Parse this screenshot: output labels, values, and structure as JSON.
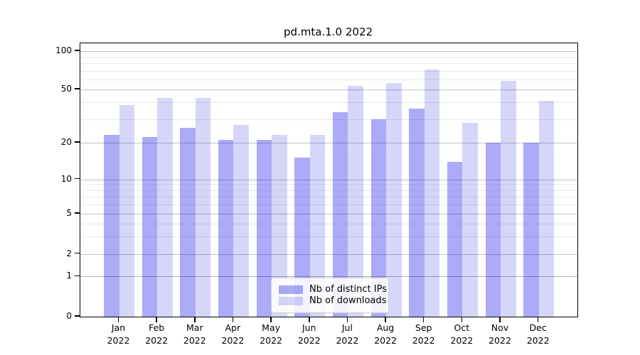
{
  "title": "pd.mta.1.0 2022",
  "colors": {
    "distinct_ips_bar": "rgba(0,0,235,0.33)",
    "downloads_bar": "rgba(0,0,215,0.16)",
    "axis": "#000000",
    "grid_major": "#c3c3c3",
    "grid_minor": "#e9e9e9"
  },
  "legend": {
    "items": [
      {
        "label": "Nb of distinct IPs",
        "series": "ips"
      },
      {
        "label": "Nb of downloads",
        "series": "downloads"
      }
    ]
  },
  "axes": {
    "y_major_ticks": [
      0,
      1,
      2,
      5,
      10,
      20,
      50,
      100
    ],
    "y_minor_ticks": [
      3,
      4,
      6,
      7,
      8,
      9,
      30,
      40,
      60,
      70,
      80,
      90
    ],
    "x_year_line": "2022"
  },
  "chart_data": {
    "type": "bar",
    "title": "pd.mta.1.0 2022",
    "categories": [
      "Jan 2022",
      "Feb 2022",
      "Mar 2022",
      "Apr 2022",
      "May 2022",
      "Jun 2022",
      "Jul 2022",
      "Aug 2022",
      "Sep 2022",
      "Oct 2022",
      "Nov 2022",
      "Dec 2022"
    ],
    "series": [
      {
        "name": "Nb of distinct IPs",
        "key": "ips",
        "values": [
          23,
          22,
          26,
          21,
          21,
          15,
          34,
          30,
          36,
          14,
          20,
          20
        ]
      },
      {
        "name": "Nb of downloads",
        "key": "downloads",
        "values": [
          38,
          43,
          43,
          27,
          23,
          23,
          53,
          56,
          72,
          28,
          58,
          41
        ]
      }
    ],
    "xlabel": "",
    "ylabel": "",
    "ylim": [
      0,
      100
    ],
    "yscale": "symlog",
    "grid": true,
    "legend_position": "lower center"
  }
}
